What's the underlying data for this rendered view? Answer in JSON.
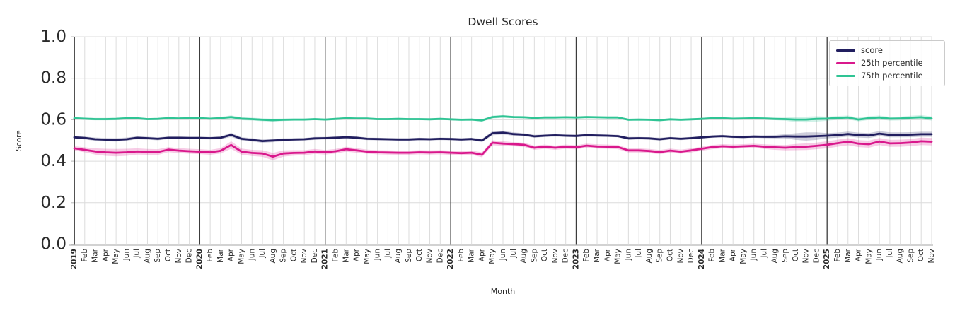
{
  "figure": {
    "background": "#ffffff",
    "text_color": "#2b2b2b",
    "grid_color": "#dcdcdc",
    "year_gridline_color": "#3c3c3c",
    "bottom_spine_color": "#d2d2d2",
    "left_spine_color": "#2b2b2b"
  },
  "chart_data": {
    "type": "line",
    "title": "Dwell Scores",
    "xlabel": "Month",
    "ylabel": "Score",
    "ylim": [
      0.0,
      1.0
    ],
    "grid": true,
    "legend_position": "upper right",
    "yticks": [
      {
        "value": 0.0,
        "label": "0.0"
      },
      {
        "value": 0.2,
        "label": "0.2"
      },
      {
        "value": 0.4,
        "label": "0.4"
      },
      {
        "value": 0.6,
        "label": "0.6"
      },
      {
        "value": 0.8,
        "label": "0.8"
      },
      {
        "value": 1.0,
        "label": "1.0"
      }
    ],
    "categories": [
      "2019",
      "Feb",
      "Mar",
      "Apr",
      "May",
      "Jun",
      "Jul",
      "Aug",
      "Sep",
      "Oct",
      "Nov",
      "Dec",
      "2020",
      "Feb",
      "Mar",
      "Apr",
      "May",
      "Jun",
      "Jul",
      "Aug",
      "Sep",
      "Oct",
      "Nov",
      "Dec",
      "2021",
      "Feb",
      "Mar",
      "Apr",
      "May",
      "Jun",
      "Jul",
      "Aug",
      "Sep",
      "Oct",
      "Nov",
      "Dec",
      "2022",
      "Feb",
      "Mar",
      "Apr",
      "May",
      "Jun",
      "Jul",
      "Aug",
      "Sep",
      "Oct",
      "Nov",
      "Dec",
      "2023",
      "Feb",
      "Mar",
      "Apr",
      "May",
      "Jun",
      "Jul",
      "Aug",
      "Sep",
      "Oct",
      "Nov",
      "Dec",
      "2024",
      "Feb",
      "Mar",
      "Apr",
      "May",
      "Jun",
      "Jul",
      "Aug",
      "Sep",
      "Oct",
      "Nov",
      "Dec",
      "2025",
      "Feb",
      "Mar",
      "Apr",
      "May",
      "Jun",
      "Jul",
      "Aug",
      "Sep",
      "Oct",
      "Nov"
    ],
    "series": [
      {
        "name": "score",
        "color": "#211e5f",
        "band_opacity": 0.22,
        "values": [
          0.515,
          0.512,
          0.506,
          0.504,
          0.503,
          0.506,
          0.513,
          0.511,
          0.508,
          0.513,
          0.513,
          0.512,
          0.512,
          0.511,
          0.513,
          0.527,
          0.508,
          0.503,
          0.497,
          0.5,
          0.503,
          0.505,
          0.506,
          0.51,
          0.511,
          0.513,
          0.516,
          0.513,
          0.508,
          0.507,
          0.506,
          0.505,
          0.505,
          0.507,
          0.506,
          0.508,
          0.507,
          0.505,
          0.507,
          0.5,
          0.535,
          0.538,
          0.531,
          0.528,
          0.52,
          0.523,
          0.525,
          0.523,
          0.522,
          0.526,
          0.524,
          0.523,
          0.521,
          0.51,
          0.511,
          0.51,
          0.506,
          0.511,
          0.508,
          0.511,
          0.515,
          0.519,
          0.521,
          0.518,
          0.517,
          0.519,
          0.518,
          0.518,
          0.52,
          0.519,
          0.519,
          0.521,
          0.523,
          0.526,
          0.531,
          0.526,
          0.524,
          0.533,
          0.527,
          0.527,
          0.528,
          0.53,
          0.53
        ],
        "band": [
          0.006,
          0.007,
          0.008,
          0.008,
          0.008,
          0.008,
          0.007,
          0.007,
          0.007,
          0.006,
          0.006,
          0.006,
          0.006,
          0.006,
          0.007,
          0.01,
          0.008,
          0.008,
          0.008,
          0.008,
          0.007,
          0.006,
          0.006,
          0.007,
          0.006,
          0.007,
          0.007,
          0.007,
          0.006,
          0.006,
          0.006,
          0.006,
          0.006,
          0.006,
          0.006,
          0.006,
          0.006,
          0.006,
          0.006,
          0.008,
          0.01,
          0.009,
          0.008,
          0.007,
          0.007,
          0.006,
          0.006,
          0.006,
          0.006,
          0.007,
          0.006,
          0.006,
          0.006,
          0.007,
          0.006,
          0.006,
          0.007,
          0.006,
          0.006,
          0.006,
          0.006,
          0.006,
          0.006,
          0.006,
          0.006,
          0.006,
          0.007,
          0.008,
          0.01,
          0.016,
          0.02,
          0.018,
          0.013,
          0.012,
          0.012,
          0.012,
          0.012,
          0.012,
          0.012,
          0.012,
          0.012,
          0.012,
          0.012
        ]
      },
      {
        "name": "25th percentile",
        "color": "#d9188c",
        "band_opacity": 0.22,
        "values": [
          0.462,
          0.455,
          0.447,
          0.443,
          0.441,
          0.443,
          0.447,
          0.445,
          0.444,
          0.456,
          0.451,
          0.448,
          0.446,
          0.443,
          0.45,
          0.478,
          0.446,
          0.44,
          0.437,
          0.422,
          0.437,
          0.44,
          0.441,
          0.447,
          0.443,
          0.448,
          0.458,
          0.452,
          0.446,
          0.443,
          0.442,
          0.441,
          0.441,
          0.443,
          0.442,
          0.443,
          0.441,
          0.439,
          0.441,
          0.431,
          0.489,
          0.485,
          0.482,
          0.479,
          0.465,
          0.47,
          0.465,
          0.47,
          0.467,
          0.475,
          0.471,
          0.47,
          0.468,
          0.452,
          0.452,
          0.449,
          0.444,
          0.451,
          0.446,
          0.452,
          0.46,
          0.468,
          0.472,
          0.47,
          0.472,
          0.474,
          0.47,
          0.467,
          0.465,
          0.468,
          0.47,
          0.474,
          0.479,
          0.487,
          0.494,
          0.485,
          0.482,
          0.495,
          0.486,
          0.487,
          0.49,
          0.496,
          0.494
        ],
        "band": [
          0.01,
          0.012,
          0.015,
          0.017,
          0.018,
          0.017,
          0.015,
          0.014,
          0.014,
          0.012,
          0.012,
          0.012,
          0.012,
          0.012,
          0.013,
          0.018,
          0.015,
          0.015,
          0.016,
          0.018,
          0.015,
          0.013,
          0.012,
          0.012,
          0.011,
          0.011,
          0.012,
          0.011,
          0.01,
          0.01,
          0.01,
          0.01,
          0.01,
          0.01,
          0.01,
          0.01,
          0.01,
          0.01,
          0.01,
          0.012,
          0.012,
          0.011,
          0.01,
          0.01,
          0.01,
          0.01,
          0.01,
          0.01,
          0.01,
          0.01,
          0.01,
          0.01,
          0.01,
          0.01,
          0.01,
          0.01,
          0.01,
          0.01,
          0.01,
          0.01,
          0.01,
          0.01,
          0.01,
          0.01,
          0.01,
          0.01,
          0.011,
          0.012,
          0.013,
          0.015,
          0.016,
          0.016,
          0.017,
          0.017,
          0.017,
          0.017,
          0.017,
          0.017,
          0.017,
          0.017,
          0.017,
          0.018,
          0.018
        ]
      },
      {
        "name": "75th percentile",
        "color": "#2fc494",
        "band_opacity": 0.22,
        "values": [
          0.607,
          0.605,
          0.603,
          0.603,
          0.604,
          0.607,
          0.607,
          0.603,
          0.604,
          0.608,
          0.606,
          0.607,
          0.608,
          0.605,
          0.608,
          0.613,
          0.605,
          0.603,
          0.6,
          0.598,
          0.6,
          0.601,
          0.601,
          0.603,
          0.601,
          0.604,
          0.607,
          0.606,
          0.606,
          0.603,
          0.603,
          0.604,
          0.603,
          0.603,
          0.602,
          0.604,
          0.602,
          0.6,
          0.601,
          0.597,
          0.613,
          0.616,
          0.613,
          0.612,
          0.609,
          0.611,
          0.611,
          0.612,
          0.611,
          0.613,
          0.612,
          0.611,
          0.611,
          0.6,
          0.601,
          0.6,
          0.598,
          0.602,
          0.6,
          0.602,
          0.604,
          0.607,
          0.607,
          0.605,
          0.606,
          0.607,
          0.606,
          0.604,
          0.603,
          0.601,
          0.601,
          0.604,
          0.605,
          0.609,
          0.611,
          0.601,
          0.608,
          0.611,
          0.605,
          0.606,
          0.61,
          0.612,
          0.606
        ],
        "band": [
          0.005,
          0.005,
          0.006,
          0.006,
          0.006,
          0.006,
          0.005,
          0.005,
          0.005,
          0.005,
          0.005,
          0.005,
          0.005,
          0.005,
          0.006,
          0.008,
          0.007,
          0.007,
          0.007,
          0.007,
          0.006,
          0.005,
          0.005,
          0.005,
          0.005,
          0.005,
          0.005,
          0.005,
          0.005,
          0.005,
          0.005,
          0.005,
          0.005,
          0.005,
          0.005,
          0.005,
          0.005,
          0.005,
          0.005,
          0.006,
          0.007,
          0.006,
          0.005,
          0.005,
          0.005,
          0.005,
          0.005,
          0.005,
          0.005,
          0.005,
          0.005,
          0.005,
          0.005,
          0.005,
          0.005,
          0.005,
          0.005,
          0.005,
          0.005,
          0.005,
          0.005,
          0.005,
          0.005,
          0.005,
          0.005,
          0.005,
          0.006,
          0.006,
          0.008,
          0.012,
          0.014,
          0.013,
          0.01,
          0.009,
          0.009,
          0.009,
          0.009,
          0.009,
          0.009,
          0.009,
          0.009,
          0.01,
          0.01
        ]
      }
    ]
  }
}
